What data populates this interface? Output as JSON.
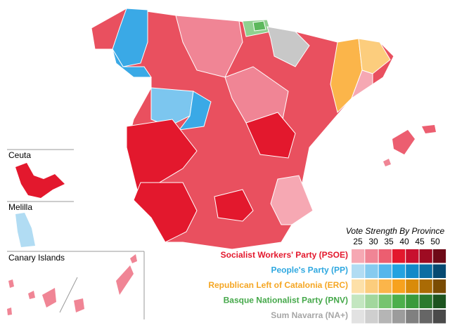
{
  "insets": [
    {
      "label": "Ceuta"
    },
    {
      "label": "Melilla"
    },
    {
      "label": "Canary Islands"
    }
  ],
  "legend": {
    "title": "Vote Strength By Province",
    "scale": [
      25,
      30,
      35,
      40,
      45,
      50
    ],
    "parties": [
      {
        "name": "Socialist Workers' Party (PSOE)",
        "color": "#e3182d",
        "shades": [
          "#f6a8b3",
          "#f08595",
          "#ec5e70",
          "#e3182d",
          "#c8102e",
          "#9e0b22",
          "#6e0a17"
        ]
      },
      {
        "name": "People's Party (PP)",
        "color": "#2fa8e0",
        "shades": [
          "#b1dcf3",
          "#86cbef",
          "#54b6ec",
          "#23a2e0",
          "#1289c8",
          "#0c6ea3",
          "#064a72"
        ]
      },
      {
        "name": "Republican Left of Catalonia (ERC)",
        "color": "#f5a623",
        "shades": [
          "#fde0a8",
          "#fccd7d",
          "#fbb54a",
          "#f7a21e",
          "#d98b0a",
          "#aa6b05",
          "#7a4c03"
        ]
      },
      {
        "name": "Basque Nationalist Party (PNV)",
        "color": "#45a84a",
        "shades": [
          "#c3e6c0",
          "#a2d79d",
          "#76c46f",
          "#4caf4b",
          "#3a9a3c",
          "#2b7a2e",
          "#1c541f"
        ]
      },
      {
        "name": "Sum Navarra (NA+)",
        "color": "#a6a6a6",
        "shades": [
          "#e2e2e2",
          "#cfcfcf",
          "#b5b5b5",
          "#9c9c9c",
          "#808080",
          "#666666",
          "#4a4a4a"
        ]
      }
    ]
  }
}
